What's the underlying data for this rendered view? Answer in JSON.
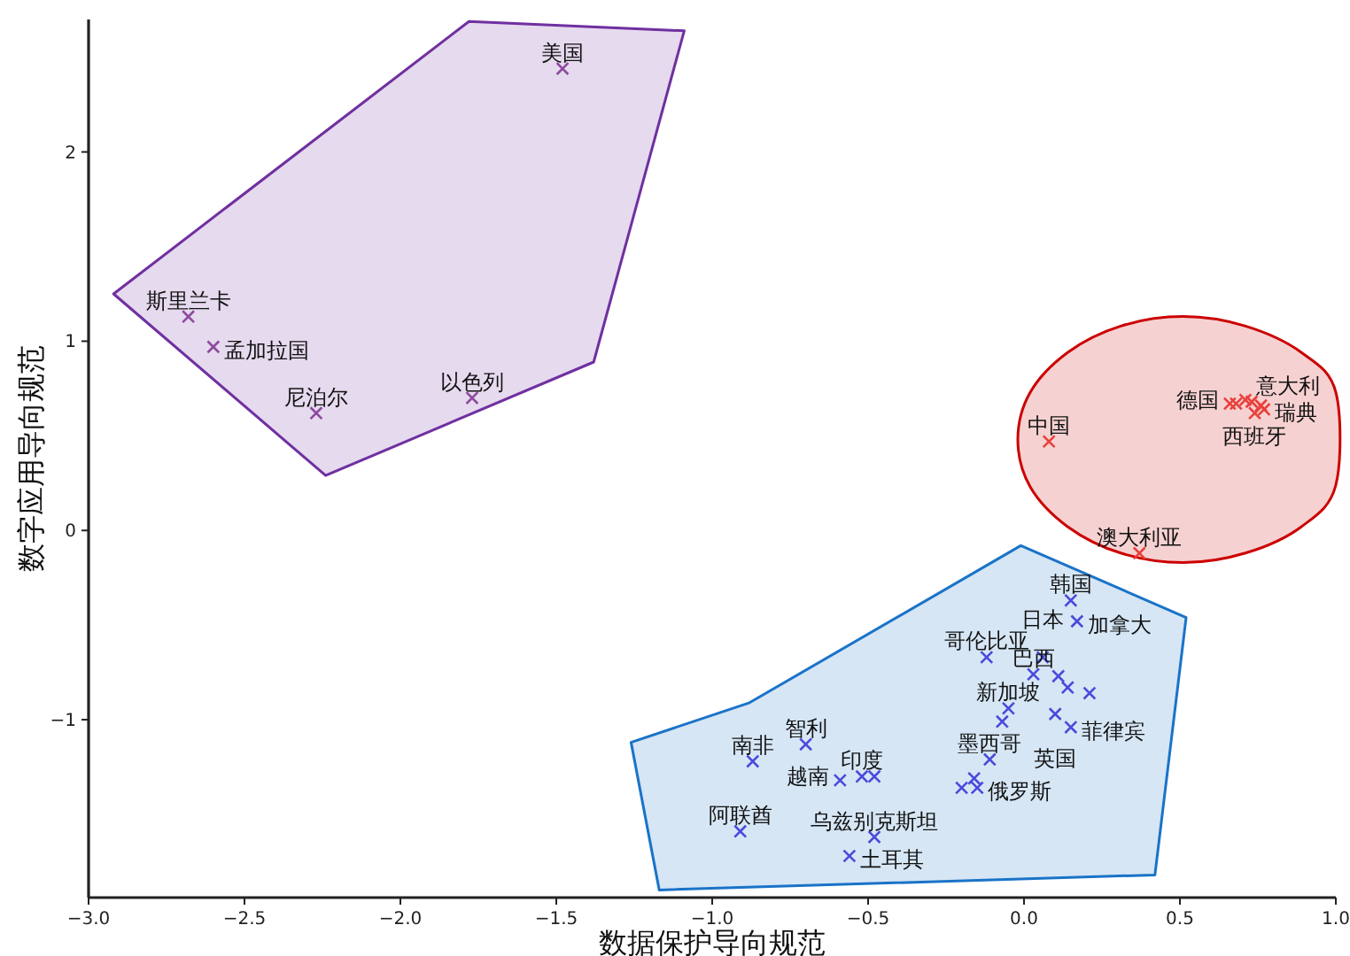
{
  "chart_data": {
    "type": "scatter",
    "xlabel": "数据保护导向规范",
    "ylabel": "数字应用导向规范",
    "xlim": [
      -3.0,
      1.0
    ],
    "ylim": [
      -1.94,
      2.7
    ],
    "xticks": [
      {
        "value": -3.0,
        "label": "−3.0"
      },
      {
        "value": -2.5,
        "label": "−2.5"
      },
      {
        "value": -2.0,
        "label": "−2.0"
      },
      {
        "value": -1.5,
        "label": "−1.5"
      },
      {
        "value": -1.0,
        "label": "−1.0"
      },
      {
        "value": -0.5,
        "label": "−0.5"
      },
      {
        "value": 0.0,
        "label": "0.0"
      },
      {
        "value": 0.5,
        "label": "0.5"
      },
      {
        "value": 1.0,
        "label": "1.0"
      }
    ],
    "yticks": [
      {
        "value": -1,
        "label": "−1"
      },
      0,
      1,
      2
    ],
    "marker": "cross",
    "grid": false,
    "series": [
      {
        "type": "area",
        "marker": "none",
        "color": "#7030a0",
        "x": [
          -2.92,
          -2.24,
          -1.38,
          -1.09,
          -1.78
        ],
        "values": [
          1.25,
          0.29,
          0.89,
          2.64,
          2.69
        ]
      },
      {
        "type": "area",
        "marker": "none",
        "color": "#cc0000",
        "line_style": "smooth",
        "x": [
          1.0,
          0.89,
          0.71,
          0.51,
          0.31,
          0.14,
          0.02,
          -0.02,
          0.02,
          0.14,
          0.31,
          0.51,
          0.71,
          0.89,
          1.0
        ],
        "values": [
          0.73,
          0.94,
          1.08,
          1.13,
          1.08,
          0.94,
          0.73,
          0.48,
          0.23,
          0.02,
          -0.12,
          -0.17,
          -0.12,
          0.02,
          0.24
        ]
      },
      {
        "type": "area",
        "marker": "none",
        "color": "#1a73c8",
        "x": [
          -1.26,
          -0.88,
          -0.01,
          0.52,
          0.42,
          -1.17
        ],
        "values": [
          -1.12,
          -0.91,
          -0.08,
          -0.46,
          -1.82,
          -1.9
        ]
      },
      {
        "color": "#8e4a9e",
        "x": [
          -1.48,
          -2.68,
          -2.6,
          -2.27,
          -1.77
        ],
        "values": [
          2.44,
          1.13,
          0.97,
          0.62,
          0.7
        ]
      },
      {
        "color": "#e8403a",
        "x": [
          0.08,
          0.37,
          0.66,
          0.68,
          0.71,
          0.73,
          0.76,
          0.74,
          0.77
        ],
        "values": [
          0.47,
          -0.12,
          0.67,
          0.67,
          0.69,
          0.68,
          0.66,
          0.62,
          0.64
        ]
      },
      {
        "color": "#4a4adb",
        "x": [
          0.15,
          0.17,
          -0.12,
          0.06,
          0.03,
          0.11,
          0.14,
          0.21,
          -0.05,
          -0.07,
          0.1,
          0.15,
          -0.11,
          -0.16,
          -0.2,
          -0.15,
          -0.87,
          -0.7,
          -0.59,
          -0.52,
          -0.48,
          -0.91,
          -0.48,
          -0.56
        ],
        "values": [
          -0.37,
          -0.48,
          -0.67,
          -0.67,
          -0.76,
          -0.77,
          -0.83,
          -0.86,
          -0.94,
          -1.01,
          -0.97,
          -1.04,
          -1.21,
          -1.31,
          -1.36,
          -1.36,
          -1.22,
          -1.13,
          -1.32,
          -1.3,
          -1.3,
          -1.59,
          -1.62,
          -1.72
        ]
      }
    ],
    "annotations": [
      {
        "text": "美国",
        "x": -1.48,
        "y": 2.44
      },
      {
        "text": "斯里兰卡",
        "x": -2.68,
        "y": 1.13
      },
      {
        "text": "孟加拉国",
        "x": -2.6,
        "y": 0.97
      },
      {
        "text": "尼泊尔",
        "x": -2.27,
        "y": 0.62
      },
      {
        "text": "以色列",
        "x": -1.77,
        "y": 0.7
      },
      {
        "text": "中国",
        "x": 0.08,
        "y": 0.47
      },
      {
        "text": "澳大利亚",
        "x": 0.37,
        "y": -0.12
      },
      {
        "text": "德国",
        "x": 0.66,
        "y": 0.67
      },
      {
        "text": "意大利",
        "x": 0.71,
        "y": 0.69
      },
      {
        "text": "瑞典",
        "x": 0.77,
        "y": 0.64
      },
      {
        "text": "西班牙",
        "x": 0.74,
        "y": 0.62
      },
      {
        "text": "韩国",
        "x": 0.15,
        "y": -0.37
      },
      {
        "text": "加拿大",
        "x": 0.17,
        "y": -0.48
      },
      {
        "text": "哥伦比亚",
        "x": -0.12,
        "y": -0.67
      },
      {
        "text": "日本",
        "x": 0.06,
        "y": -0.67
      },
      {
        "text": "巴西",
        "x": 0.03,
        "y": -0.76
      },
      {
        "text": "新加坡",
        "x": -0.05,
        "y": -0.94
      },
      {
        "text": "英国",
        "x": 0.1,
        "y": -0.97
      },
      {
        "text": "菲律宾",
        "x": 0.15,
        "y": -1.04
      },
      {
        "text": "墨西哥",
        "x": -0.11,
        "y": -1.21
      },
      {
        "text": "俄罗斯",
        "x": -0.15,
        "y": -1.36
      },
      {
        "text": "南非",
        "x": -0.87,
        "y": -1.22
      },
      {
        "text": "智利",
        "x": -0.7,
        "y": -1.13
      },
      {
        "text": "越南",
        "x": -0.59,
        "y": -1.32
      },
      {
        "text": "印度",
        "x": -0.52,
        "y": -1.3
      },
      {
        "text": "阿联酋",
        "x": -0.91,
        "y": -1.59
      },
      {
        "text": "乌兹别克斯坦",
        "x": -0.48,
        "y": -1.62
      },
      {
        "text": "土耳其",
        "x": -0.56,
        "y": -1.72
      }
    ]
  }
}
